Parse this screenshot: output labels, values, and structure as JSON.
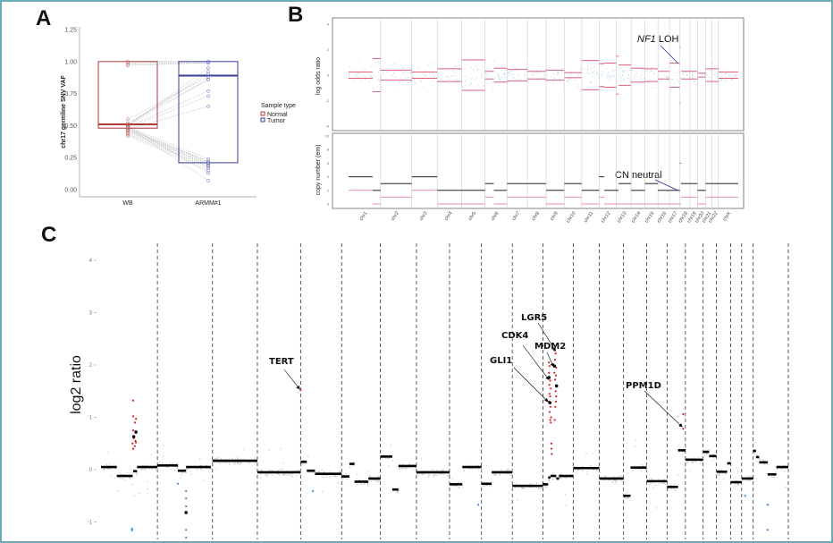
{
  "panels": {
    "a": "A",
    "b": "B",
    "c": "C"
  },
  "chart_data": [
    {
      "id": "A",
      "type": "box",
      "title": "",
      "ylabel": "chr17 germline SNV VAF",
      "ylim": [
        0,
        1.25
      ],
      "yticks": [
        "0.00",
        "0.25",
        "0.50",
        "0.75",
        "1.00",
        "1.25"
      ],
      "categories": [
        "WB",
        "ARMM#1"
      ],
      "legend": {
        "title": "Sample type",
        "position": "right",
        "entries": [
          {
            "name": "Normal",
            "color": "#b03a3a"
          },
          {
            "name": "Tumor",
            "color": "#3a3f9a"
          }
        ]
      },
      "boxes": [
        {
          "category": "WB",
          "series": "Normal",
          "q1": 0.48,
          "median": 0.51,
          "q3": 1.0,
          "color": "#b03a3a"
        },
        {
          "category": "ARMM#1",
          "series": "Tumor",
          "q1": 0.21,
          "median": 0.89,
          "q3": 1.0,
          "color": "#3a3f9a"
        }
      ],
      "paired_points": [
        [
          1.0,
          1.0
        ],
        [
          0.99,
          1.0
        ],
        [
          0.98,
          0.99
        ],
        [
          0.97,
          0.99
        ],
        [
          0.55,
          0.88
        ],
        [
          0.52,
          0.86
        ],
        [
          0.51,
          0.9
        ],
        [
          0.5,
          0.92
        ],
        [
          0.5,
          0.95
        ],
        [
          0.49,
          0.77
        ],
        [
          0.48,
          0.73
        ],
        [
          0.47,
          0.65
        ],
        [
          0.5,
          0.86
        ],
        [
          0.49,
          0.24
        ],
        [
          0.48,
          0.22
        ],
        [
          0.47,
          0.21
        ],
        [
          0.46,
          0.2
        ],
        [
          0.45,
          0.19
        ],
        [
          0.44,
          0.18
        ],
        [
          0.43,
          0.17
        ],
        [
          0.42,
          0.15
        ],
        [
          0.5,
          0.13
        ],
        [
          0.49,
          0.07
        ],
        [
          0.46,
          0.2
        ],
        [
          0.47,
          0.22
        ]
      ]
    },
    {
      "id": "B",
      "type": "segment",
      "ylabel_top": "log odds ratio",
      "ylabel_bottom": "copy number (em)",
      "ylim_top": [
        -4.2,
        4.2
      ],
      "yticks_top": [
        "-4",
        "-2",
        "0",
        "2",
        "4"
      ],
      "ylim_bottom": [
        0,
        10.4
      ],
      "yticks_bottom": [
        "0",
        "2",
        "4",
        "6",
        "8",
        "10"
      ],
      "colors": {
        "lor": "#e0607a",
        "total_cn": "#222222",
        "minor_cn": "#ef8fa3",
        "points": "#8ec3dc"
      },
      "segments_fields": [
        "chr",
        "start_frac",
        "end_frac",
        "log_odds",
        "total_cn",
        "minor_cn"
      ],
      "segments": [
        [
          1,
          0,
          0.75,
          0.25,
          4,
          2
        ],
        [
          1,
          0.75,
          1,
          1.3,
          2,
          0
        ],
        [
          2,
          0,
          1,
          0.4,
          3,
          1
        ],
        [
          3,
          0,
          1,
          0.25,
          4,
          2
        ],
        [
          4,
          0,
          1,
          0.5,
          2,
          0
        ],
        [
          5,
          0,
          1,
          1.2,
          2,
          0
        ],
        [
          6,
          0,
          0.4,
          0.3,
          3,
          1
        ],
        [
          6,
          0.4,
          1,
          0.55,
          2,
          0
        ],
        [
          7,
          0,
          1,
          0.45,
          3,
          1
        ],
        [
          8,
          0,
          1,
          0.3,
          3,
          1
        ],
        [
          9,
          0,
          1,
          0.4,
          2,
          0
        ],
        [
          10,
          0,
          1,
          0.2,
          3,
          1
        ],
        [
          11,
          0,
          1,
          1.15,
          2,
          0
        ],
        [
          12,
          0,
          0.3,
          0.9,
          4,
          1
        ],
        [
          12,
          0.3,
          1,
          0.95,
          2,
          0
        ],
        [
          13,
          0,
          0.15,
          1.5,
          2,
          0
        ],
        [
          13,
          0.15,
          1,
          0.8,
          3,
          0
        ],
        [
          14,
          0,
          1,
          0.55,
          2,
          0
        ],
        [
          15,
          0,
          1,
          0.5,
          3,
          0
        ],
        [
          16,
          0,
          1,
          0.3,
          2,
          0
        ],
        [
          17,
          0,
          1,
          0.95,
          2,
          0
        ],
        [
          18,
          0,
          0.1,
          2.2,
          6,
          0
        ],
        [
          18,
          0.1,
          1,
          0.3,
          3,
          1
        ],
        [
          19,
          0,
          1,
          0.3,
          3,
          1
        ],
        [
          20,
          0,
          1,
          0.15,
          2,
          0
        ],
        [
          21,
          0,
          1,
          0.5,
          3,
          1
        ],
        [
          22,
          0,
          1,
          0.5,
          3,
          1
        ],
        [
          23,
          0,
          1,
          0.25,
          3,
          1
        ]
      ],
      "annotations": [
        {
          "italic": "NF1",
          "text": " LOH",
          "chr": 17,
          "frac": 0.8,
          "panel": "top",
          "value": 0.95
        },
        {
          "text": "CN neutral",
          "chr": 17,
          "frac": 0.8,
          "panel": "bottom",
          "value": 2
        }
      ]
    },
    {
      "id": "C",
      "type": "scatter+segment",
      "ylabel": "log2 ratio",
      "ylim": [
        -1.3,
        4.3
      ],
      "yticks": [
        "-1",
        "0",
        "1",
        "2",
        "3",
        "4"
      ],
      "colors": {
        "bins": "#c8c8c8",
        "segments": "#000000",
        "gain": "#e02020",
        "loss": "#3a8ad8"
      },
      "segments_fields": [
        "chr",
        "start_frac",
        "end_frac",
        "log2"
      ],
      "segments": [
        [
          1,
          0,
          0.28,
          0.05
        ],
        [
          1,
          0.28,
          0.56,
          -0.12
        ],
        [
          1,
          0.57,
          0.64,
          -0.03
        ],
        [
          1,
          0.64,
          1,
          0.05
        ],
        [
          2,
          0,
          0.37,
          0.08
        ],
        [
          2,
          0.37,
          0.52,
          -0.02
        ],
        [
          2,
          0.52,
          0.97,
          0.05
        ],
        [
          3,
          0,
          1,
          0.17
        ],
        [
          4,
          0,
          1,
          -0.05
        ],
        [
          5,
          0,
          0.15,
          0.15
        ],
        [
          5,
          0.15,
          0.35,
          -0.02
        ],
        [
          5,
          0.35,
          1,
          -0.08
        ],
        [
          6,
          0,
          0.2,
          -0.13
        ],
        [
          6,
          0.2,
          0.33,
          0.11
        ],
        [
          6,
          0.33,
          0.69,
          -0.23
        ],
        [
          6,
          0.69,
          1,
          -0.17
        ],
        [
          7,
          0,
          0.33,
          0.25
        ],
        [
          7,
          0.33,
          0.5,
          -0.38
        ],
        [
          7,
          0.5,
          1,
          0.07
        ],
        [
          8,
          0,
          1,
          -0.05
        ],
        [
          9,
          0,
          0.4,
          -0.28
        ],
        [
          9,
          0.4,
          1,
          0.05
        ],
        [
          10,
          0,
          0.33,
          -0.27
        ],
        [
          10,
          0.33,
          1,
          -0.05
        ],
        [
          11,
          0,
          1,
          -0.31
        ],
        [
          12,
          0,
          0.17,
          -0.28
        ],
        [
          12,
          0.17,
          0.25,
          -0.15
        ],
        [
          12,
          0.25,
          0.44,
          -0.12
        ],
        [
          12,
          0.44,
          0.53,
          -0.17
        ],
        [
          12,
          0.53,
          1,
          -0.12
        ],
        [
          13,
          0,
          1,
          0.03
        ],
        [
          14,
          0,
          1,
          -0.17
        ],
        [
          15,
          0,
          0.3,
          -0.5
        ],
        [
          15,
          0.3,
          1,
          0.04
        ],
        [
          16,
          0,
          1,
          -0.22
        ],
        [
          17,
          0,
          0.6,
          -0.33
        ],
        [
          17,
          0.6,
          1,
          0.37
        ],
        [
          18,
          0,
          1,
          0.19
        ],
        [
          19,
          0,
          0.45,
          0.34
        ],
        [
          19,
          0.45,
          1,
          0.26
        ],
        [
          20,
          0,
          0.75,
          -0.04
        ],
        [
          20,
          0.75,
          1,
          0.12
        ],
        [
          21,
          0,
          1,
          -0.24
        ],
        [
          22,
          0,
          1,
          -0.17
        ],
        [
          23,
          0,
          0.08,
          0.36
        ],
        [
          23,
          0.08,
          0.17,
          0.24
        ],
        [
          23,
          0.17,
          0.41,
          0.14
        ],
        [
          23,
          0.41,
          0.66,
          -0.09
        ],
        [
          23,
          0.66,
          1,
          0.05
        ]
      ],
      "gain_points": [
        [
          1,
          0.57,
          1.32
        ],
        [
          1,
          0.57,
          1.02
        ],
        [
          1,
          0.62,
          0.97
        ],
        [
          1,
          0.6,
          0.9
        ],
        [
          1,
          0.57,
          0.75
        ],
        [
          1,
          0.62,
          0.7
        ],
        [
          1,
          0.58,
          0.6
        ],
        [
          1,
          0.61,
          0.55
        ],
        [
          1,
          0.56,
          0.5
        ],
        [
          1,
          0.6,
          0.45
        ],
        [
          1,
          0.57,
          0.4
        ],
        [
          1,
          0.62,
          0.52
        ],
        [
          5,
          0.0,
          1.52
        ],
        [
          12,
          0.2,
          2.05
        ],
        [
          12,
          0.22,
          1.98
        ],
        [
          12,
          0.2,
          1.85
        ],
        [
          12,
          0.24,
          1.7
        ],
        [
          12,
          0.21,
          1.62
        ],
        [
          12,
          0.26,
          1.55
        ],
        [
          12,
          0.22,
          1.45
        ],
        [
          12,
          0.24,
          1.4
        ],
        [
          12,
          0.2,
          1.3
        ],
        [
          12,
          0.25,
          1.2
        ],
        [
          12,
          0.22,
          1.1
        ],
        [
          12,
          0.27,
          1.0
        ],
        [
          12,
          0.24,
          0.95
        ],
        [
          12,
          0.26,
          0.9
        ],
        [
          12,
          0.28,
          0.5
        ],
        [
          12,
          0.28,
          0.4
        ],
        [
          12,
          0.29,
          0.3
        ],
        [
          12,
          0.38,
          2.28
        ],
        [
          12,
          0.42,
          2.22
        ],
        [
          12,
          0.4,
          2.1
        ],
        [
          12,
          0.44,
          1.95
        ],
        [
          12,
          0.38,
          1.85
        ],
        [
          12,
          0.43,
          1.8
        ],
        [
          12,
          0.4,
          1.72
        ],
        [
          12,
          0.45,
          1.6
        ],
        [
          12,
          0.42,
          1.5
        ],
        [
          12,
          0.44,
          1.4
        ],
        [
          12,
          0.43,
          1.3
        ],
        [
          12,
          0.41,
          1.2
        ],
        [
          12,
          0.39,
          0.95
        ],
        [
          17,
          0.88,
          1.06
        ],
        [
          17,
          0.88,
          0.78
        ]
      ],
      "called_points": [
        [
          1,
          0.58,
          0.63
        ],
        [
          1,
          0.62,
          0.72
        ],
        [
          2,
          0.52,
          -0.82
        ],
        [
          12,
          0.23,
          1.28
        ],
        [
          12,
          0.2,
          1.76
        ],
        [
          12,
          0.38,
          1.98
        ],
        [
          12,
          0.45,
          1.6
        ]
      ],
      "loss_points": [
        [
          1,
          0.55,
          -1.13
        ],
        [
          1,
          0.55,
          -1.16
        ],
        [
          2,
          0.37,
          -0.27
        ],
        [
          2,
          0.52,
          -0.41
        ],
        [
          2,
          0.52,
          -0.55
        ],
        [
          2,
          0.52,
          -0.7
        ],
        [
          2,
          0.52,
          -1.15
        ],
        [
          2,
          0.52,
          -1.3
        ],
        [
          5,
          0.3,
          -0.41
        ],
        [
          9,
          0.9,
          -0.67
        ],
        [
          22,
          0.3,
          -0.5
        ],
        [
          23,
          0.41,
          -0.67
        ],
        [
          23,
          0.41,
          -1.15
        ]
      ],
      "annotations": [
        {
          "gene": "TERT",
          "chr": 5,
          "frac": 0.0,
          "value": 1.52
        },
        {
          "gene": "LGR5",
          "chr": 12,
          "frac": 0.45,
          "value": 2.25
        },
        {
          "gene": "CDK4",
          "chr": 12,
          "frac": 0.23,
          "value": 1.7
        },
        {
          "gene": "MDM2",
          "chr": 12,
          "frac": 0.38,
          "value": 1.95
        },
        {
          "gene": "GLI1",
          "chr": 12,
          "frac": 0.2,
          "value": 1.28
        },
        {
          "gene": "PPM1D",
          "chr": 17,
          "frac": 0.88,
          "value": 0.8
        }
      ]
    }
  ],
  "chromosomes": [
    {
      "name": "chr1",
      "mb": 249
    },
    {
      "name": "chr2",
      "mb": 243
    },
    {
      "name": "chr3",
      "mb": 198
    },
    {
      "name": "chr4",
      "mb": 191
    },
    {
      "name": "chr5",
      "mb": 181
    },
    {
      "name": "chr6",
      "mb": 171
    },
    {
      "name": "chr7",
      "mb": 159
    },
    {
      "name": "chr8",
      "mb": 146
    },
    {
      "name": "chr9",
      "mb": 141
    },
    {
      "name": "chr10",
      "mb": 136
    },
    {
      "name": "chr11",
      "mb": 135
    },
    {
      "name": "chr12",
      "mb": 134
    },
    {
      "name": "chr13",
      "mb": 115
    },
    {
      "name": "chr14",
      "mb": 107
    },
    {
      "name": "chr15",
      "mb": 102
    },
    {
      "name": "chr16",
      "mb": 90
    },
    {
      "name": "chr17",
      "mb": 81
    },
    {
      "name": "chr18",
      "mb": 78
    },
    {
      "name": "chr19",
      "mb": 59
    },
    {
      "name": "chr20",
      "mb": 63
    },
    {
      "name": "chr21",
      "mb": 48
    },
    {
      "name": "chr22",
      "mb": 51
    },
    {
      "name": "chrX",
      "mb": 155
    }
  ]
}
